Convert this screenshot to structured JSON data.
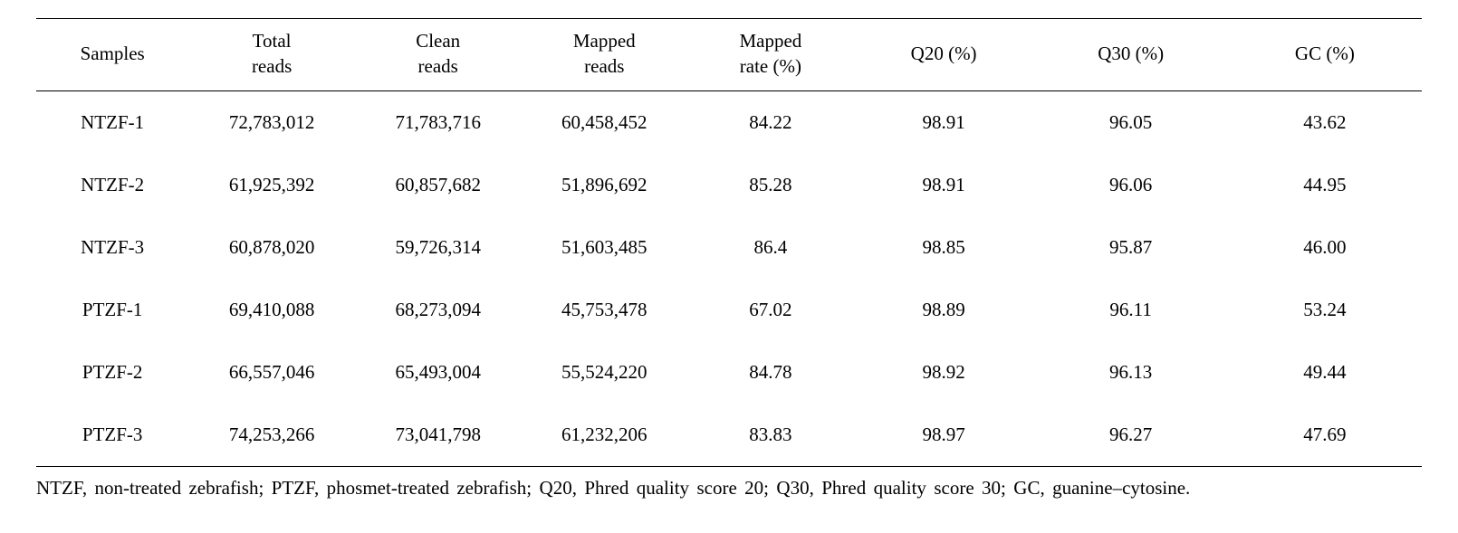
{
  "table": {
    "columns": [
      {
        "key": "samples",
        "line1": "Samples",
        "line2": "",
        "width_pct": 11
      },
      {
        "key": "total_reads",
        "line1": "Total",
        "line2": "reads",
        "width_pct": 12
      },
      {
        "key": "clean_reads",
        "line1": "Clean",
        "line2": "reads",
        "width_pct": 12
      },
      {
        "key": "mapped_reads",
        "line1": "Mapped",
        "line2": "reads",
        "width_pct": 12
      },
      {
        "key": "mapped_rate",
        "line1": "Mapped",
        "line2": "rate (%)",
        "width_pct": 12
      },
      {
        "key": "q20",
        "line1": "Q20 (%)",
        "line2": "",
        "width_pct": 13
      },
      {
        "key": "q30",
        "line1": "Q30 (%)",
        "line2": "",
        "width_pct": 14
      },
      {
        "key": "gc",
        "line1": "GC (%)",
        "line2": "",
        "width_pct": 14
      }
    ],
    "rows": [
      {
        "samples": "NTZF-1",
        "total_reads": "72,783,012",
        "clean_reads": "71,783,716",
        "mapped_reads": "60,458,452",
        "mapped_rate": "84.22",
        "q20": "98.91",
        "q30": "96.05",
        "gc": "43.62"
      },
      {
        "samples": "NTZF-2",
        "total_reads": "61,925,392",
        "clean_reads": "60,857,682",
        "mapped_reads": "51,896,692",
        "mapped_rate": "85.28",
        "q20": "98.91",
        "q30": "96.06",
        "gc": "44.95"
      },
      {
        "samples": "NTZF-3",
        "total_reads": "60,878,020",
        "clean_reads": "59,726,314",
        "mapped_reads": "51,603,485",
        "mapped_rate": "86.4",
        "q20": "98.85",
        "q30": "95.87",
        "gc": "46.00"
      },
      {
        "samples": "PTZF-1",
        "total_reads": "69,410,088",
        "clean_reads": "68,273,094",
        "mapped_reads": "45,753,478",
        "mapped_rate": "67.02",
        "q20": "98.89",
        "q30": "96.11",
        "gc": "53.24"
      },
      {
        "samples": "PTZF-2",
        "total_reads": "66,557,046",
        "clean_reads": "65,493,004",
        "mapped_reads": "55,524,220",
        "mapped_rate": "84.78",
        "q20": "98.92",
        "q30": "96.13",
        "gc": "49.44"
      },
      {
        "samples": "PTZF-3",
        "total_reads": "74,253,266",
        "clean_reads": "73,041,798",
        "mapped_reads": "61,232,206",
        "mapped_rate": "83.83",
        "q20": "98.97",
        "q30": "96.27",
        "gc": "47.69"
      }
    ],
    "border_color": "#000000",
    "background_color": "#ffffff",
    "text_color": "#000000",
    "font_size_pt": 16
  },
  "caption": "NTZF, non-treated zebrafish; PTZF, phosmet-treated zebrafish; Q20, Phred quality score 20; Q30, Phred quality score 30; GC, guanine–cytosine."
}
